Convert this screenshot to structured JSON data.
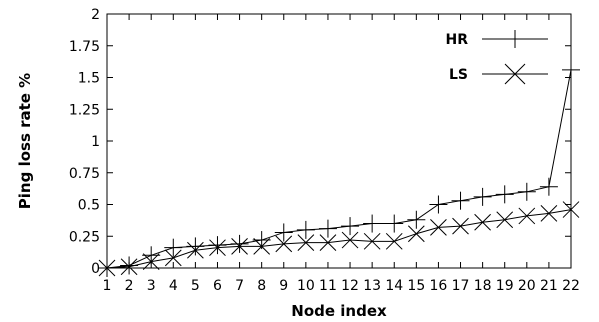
{
  "chart_data": {
    "type": "line",
    "xlabel": "Node index",
    "ylabel": "Ping loss rate %",
    "x": [
      1,
      2,
      3,
      4,
      5,
      6,
      7,
      8,
      9,
      10,
      11,
      12,
      13,
      14,
      15,
      16,
      17,
      18,
      19,
      20,
      21,
      22
    ],
    "xlim": [
      1,
      22
    ],
    "ylim": [
      0,
      2
    ],
    "yticks": [
      "0",
      "0.25",
      "0.5",
      "0.75",
      "1",
      "1.25",
      "1.5",
      "1.75",
      "2"
    ],
    "xticks": [
      "1",
      "2",
      "3",
      "4",
      "5",
      "6",
      "7",
      "8",
      "9",
      "10",
      "11",
      "12",
      "13",
      "14",
      "15",
      "16",
      "17",
      "18",
      "19",
      "20",
      "21",
      "22"
    ],
    "grid": false,
    "legend_position": "top-right",
    "series": [
      {
        "name": "HR",
        "marker": "plus",
        "values": [
          0,
          0.02,
          0.1,
          0.16,
          0.17,
          0.18,
          0.19,
          0.22,
          0.28,
          0.3,
          0.31,
          0.33,
          0.35,
          0.35,
          0.38,
          0.5,
          0.53,
          0.56,
          0.58,
          0.6,
          0.64,
          1.56
        ]
      },
      {
        "name": "LS",
        "marker": "cross",
        "values": [
          0,
          0.01,
          0.05,
          0.08,
          0.14,
          0.16,
          0.17,
          0.17,
          0.19,
          0.2,
          0.2,
          0.22,
          0.21,
          0.21,
          0.27,
          0.32,
          0.33,
          0.36,
          0.38,
          0.41,
          0.43,
          0.46
        ]
      }
    ]
  }
}
